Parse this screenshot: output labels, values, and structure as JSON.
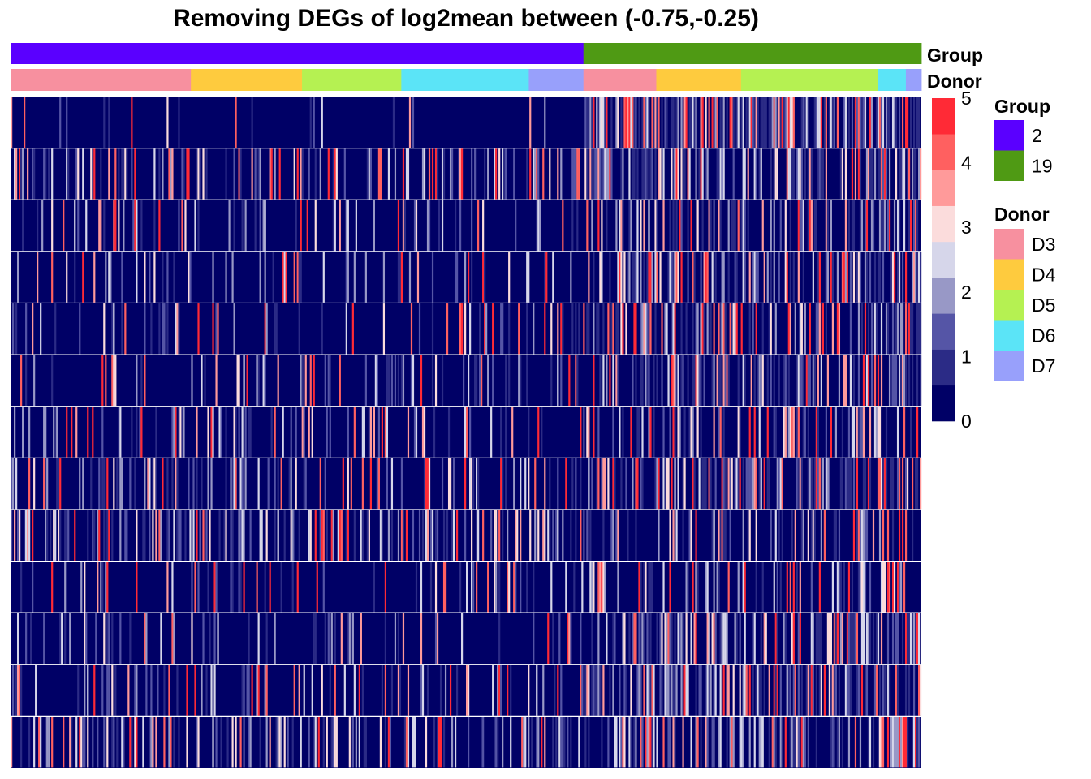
{
  "chart_data": {
    "type": "heatmap",
    "title": "Removing DEGs of log2mean between (-0.75,-0.25)",
    "xlabel": "",
    "ylabel": "",
    "n_rows": 13,
    "n_columns": 560,
    "value_range": [
      0,
      5
    ],
    "colorbar": {
      "ticks": [
        0,
        1,
        2,
        3,
        4,
        5
      ],
      "tick_labels": [
        "0",
        "1",
        "2",
        "3",
        "4",
        "5"
      ],
      "breaks": [
        0,
        0.5,
        1,
        1.5,
        2,
        2.5,
        3,
        3.5,
        4,
        4.5,
        5
      ],
      "colors": [
        "#000066",
        "#2b2b86",
        "#5555a6",
        "#9898c6",
        "#d6d6ea",
        "#fbdcdc",
        "#ff9a9a",
        "#ff6060",
        "#ff2a36"
      ]
    },
    "annotations": [
      {
        "name": "Group",
        "segments": [
          {
            "label": "2",
            "fraction": 0.629
          },
          {
            "label": "19",
            "fraction": 0.371
          }
        ]
      },
      {
        "name": "Donor",
        "segments": [
          {
            "label": "D3",
            "fraction": 0.198
          },
          {
            "label": "D4",
            "fraction": 0.122
          },
          {
            "label": "D5",
            "fraction": 0.109
          },
          {
            "label": "D6",
            "fraction": 0.14
          },
          {
            "label": "D7",
            "fraction": 0.06
          },
          {
            "label": "D3",
            "fraction": 0.08
          },
          {
            "label": "D4",
            "fraction": 0.093
          },
          {
            "label": "D5",
            "fraction": 0.15
          },
          {
            "label": "D6",
            "fraction": 0.031
          },
          {
            "label": "D7",
            "fraction": 0.017
          }
        ]
      }
    ],
    "legends": [
      {
        "title": "Group",
        "entries": [
          {
            "label": "2",
            "color": "#5a00ff"
          },
          {
            "label": "19",
            "color": "#4f9a14"
          }
        ]
      },
      {
        "title": "Donor",
        "entries": [
          {
            "label": "D3",
            "color": "#f7909f"
          },
          {
            "label": "D4",
            "color": "#fecb3e"
          },
          {
            "label": "D5",
            "color": "#b5f152"
          },
          {
            "label": "D6",
            "color": "#5be4f7"
          },
          {
            "label": "D7",
            "color": "#98a0fb"
          }
        ]
      }
    ],
    "row_profiles": {
      "group2_hot_fraction": [
        0.05,
        0.3,
        0.18,
        0.15,
        0.2,
        0.18,
        0.25,
        0.28,
        0.4,
        0.18,
        0.15,
        0.22,
        0.35
      ],
      "group19_hot_fraction": [
        0.7,
        0.55,
        0.4,
        0.4,
        0.42,
        0.45,
        0.38,
        0.5,
        0.28,
        0.35,
        0.5,
        0.55,
        0.45
      ]
    }
  }
}
